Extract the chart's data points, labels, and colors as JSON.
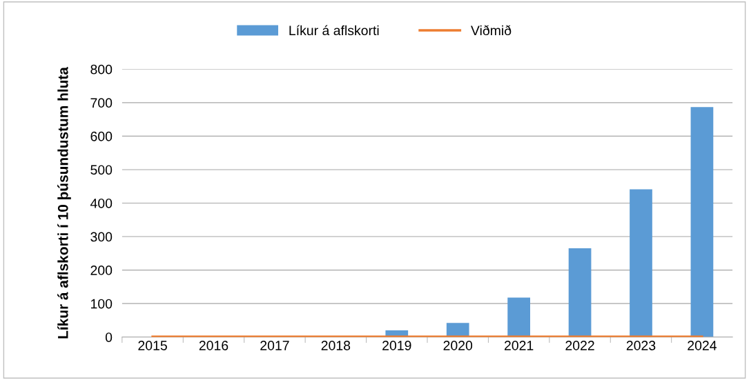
{
  "chart_data": {
    "type": "bar",
    "ylabel": "Líkur á aflskorti í 10 þúsundustum hluta",
    "categories": [
      "2015",
      "2016",
      "2017",
      "2018",
      "2019",
      "2020",
      "2021",
      "2022",
      "2023",
      "2024"
    ],
    "series": [
      {
        "name": "Líkur á aflskorti",
        "color": "#5b9bd5",
        "values": [
          0,
          0,
          0,
          0,
          20,
          42,
          118,
          265,
          441,
          687
        ]
      },
      {
        "name": "Viðmið",
        "type": "line",
        "color": "#ed7d31",
        "values": [
          1,
          1,
          1,
          1,
          1,
          1,
          1,
          1,
          1,
          1
        ]
      }
    ],
    "ylim": [
      0,
      800
    ],
    "yticks": [
      0,
      100,
      200,
      300,
      400,
      500,
      600,
      700,
      800
    ],
    "grid": "y",
    "legend": "top"
  }
}
